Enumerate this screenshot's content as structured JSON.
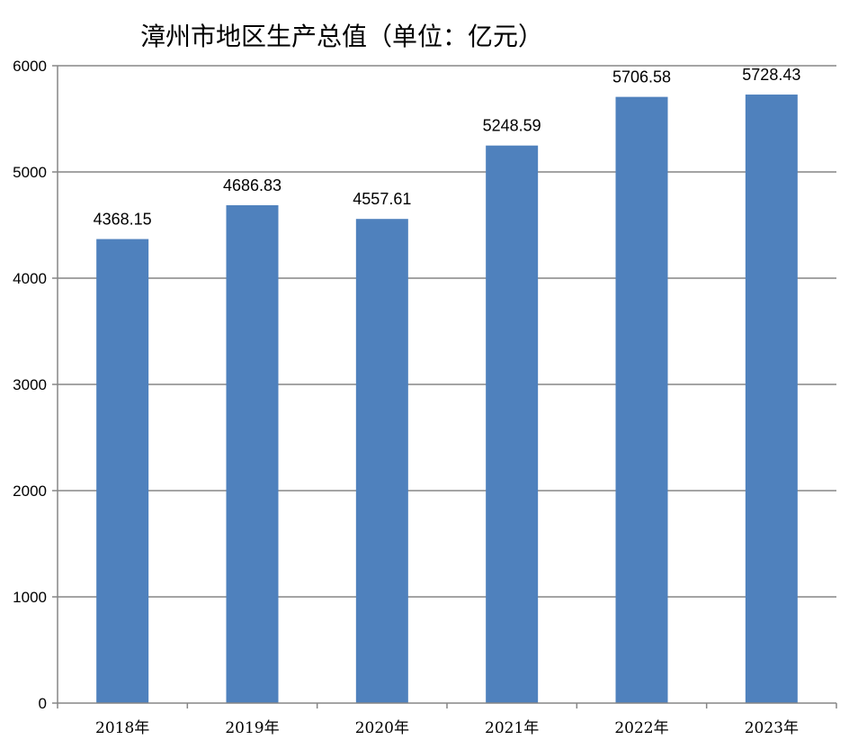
{
  "chart_data": {
    "type": "bar",
    "title": "漳州市地区生产总值（单位：亿元）",
    "categories": [
      "2018年",
      "2019年",
      "2020年",
      "2021年",
      "2022年",
      "2023年"
    ],
    "values": [
      4368.15,
      4686.83,
      4557.61,
      5248.59,
      5706.58,
      5728.43
    ],
    "data_labels": [
      "4368.15",
      "4686.83",
      "4557.61",
      "5248.59",
      "5706.58",
      "5728.43"
    ],
    "yticks": [
      "0",
      "1000",
      "2000",
      "3000",
      "4000",
      "5000",
      "6000"
    ],
    "ylim": [
      0,
      6000
    ],
    "xlabel": "",
    "ylabel": "",
    "grid": true,
    "legend": "none",
    "bar_color": "#4f81bd",
    "grid_color": "#868686"
  }
}
